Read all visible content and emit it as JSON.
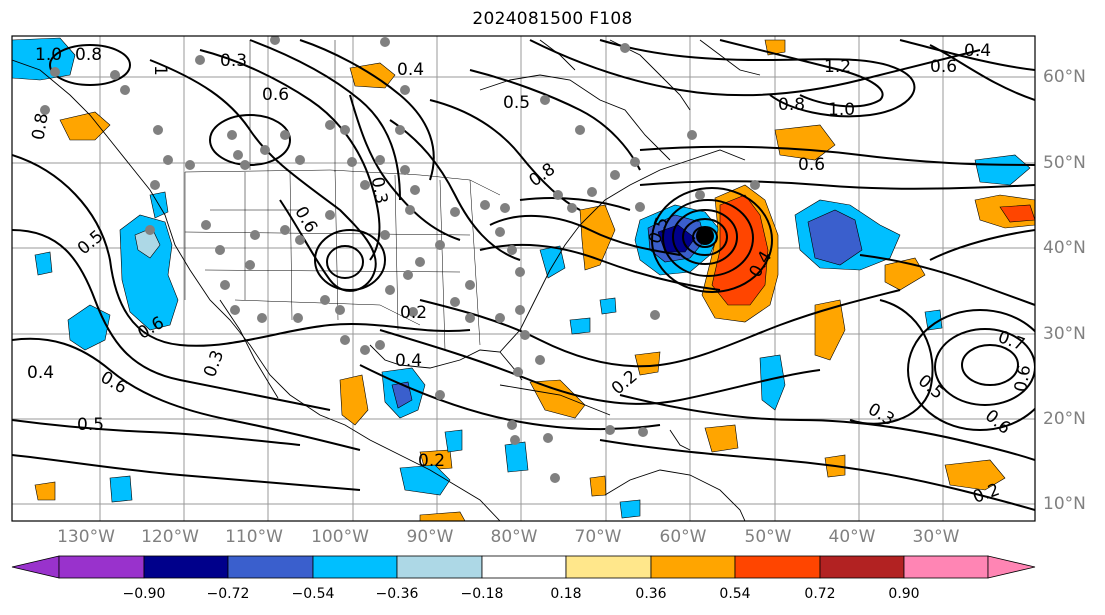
{
  "title": "2024081500 F108",
  "lon_labels": [
    "130°W",
    "120°W",
    "110°W",
    "100°W",
    "90°W",
    "80°W",
    "70°W",
    "60°W",
    "50°W",
    "40°W",
    "30°W"
  ],
  "lat_labels": [
    "60°N",
    "50°N",
    "40°N",
    "30°N",
    "20°N",
    "10°N"
  ],
  "colorbar": {
    "ticks": [
      "−0.90",
      "−0.72",
      "−0.54",
      "−0.36",
      "−0.18",
      "0.18",
      "0.36",
      "0.54",
      "0.72",
      "0.90"
    ],
    "colors": [
      "#9932cc",
      "#00008b",
      "#3a5fcd",
      "#00bfff",
      "#add8e6",
      "#ffffff",
      "#ffe78b",
      "#ffa500",
      "#ff4500",
      "#b22222",
      "#ff85b4"
    ]
  },
  "contour_labels": [
    "1.0",
    "0.8",
    "0.3",
    "1",
    "0.4",
    "0.6",
    "0.5",
    "1.2",
    "0.8",
    "1.0",
    "0.4",
    "0.6",
    "0.8",
    "0.6",
    "0.5",
    "0.8",
    "0.3",
    "0.5",
    "0.6",
    "0.3",
    "0.2",
    "0.4",
    "0.6",
    "0.4",
    "0.5",
    "0.2",
    "0.2",
    "0.7",
    "0.5",
    "0.6",
    "0.3",
    "0.6",
    "0.2",
    "0.4",
    "0.6"
  ]
}
